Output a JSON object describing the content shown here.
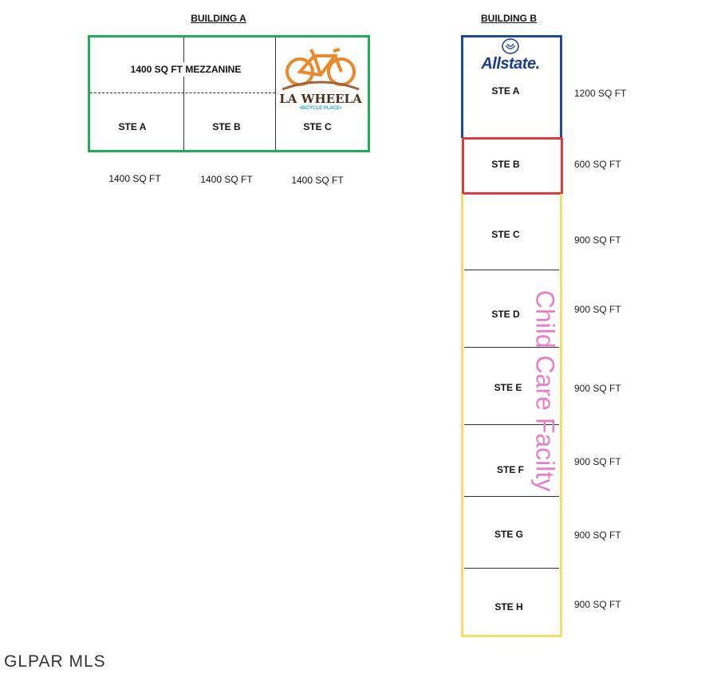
{
  "building_a": {
    "title": "BUILDING A",
    "mezzanine": "1400 SQ FT MEZZANINE",
    "tenant_logo": {
      "name": "LA WHEELA",
      "tagline": "•BICYCLE PLACE•",
      "color": "#e8892b"
    },
    "border_color": "#1fae55",
    "suites": [
      {
        "label": "STE A",
        "sqft": "1400 SQ FT"
      },
      {
        "label": "STE B",
        "sqft": "1400 SQ FT"
      },
      {
        "label": "STE C",
        "sqft": "1400 SQ FT"
      }
    ]
  },
  "building_b": {
    "title": "BUILDING B",
    "tenant_logo": {
      "name": "Allstate.",
      "color": "#1a3f8f"
    },
    "annotation": {
      "text": "Child Care Facilty",
      "color": "#e77fc8"
    },
    "colors": {
      "ste_a": "#1f4a9a",
      "ste_b": "#e0393e",
      "rest": "#f5dd6a"
    },
    "suites": [
      {
        "label": "STE A",
        "sqft": "1200 SQ FT"
      },
      {
        "label": "STE B",
        "sqft": "600 SQ FT"
      },
      {
        "label": "STE C",
        "sqft": "900 SQ FT"
      },
      {
        "label": "STE D",
        "sqft": "900 SQ FT"
      },
      {
        "label": "STE E",
        "sqft": "900 SQ FT"
      },
      {
        "label": "STE F",
        "sqft": "900 SQ FT"
      },
      {
        "label": "STE G",
        "sqft": "900 SQ FT"
      },
      {
        "label": "STE H",
        "sqft": "900 SQ FT"
      }
    ]
  },
  "watermark": "GLPAR MLS"
}
